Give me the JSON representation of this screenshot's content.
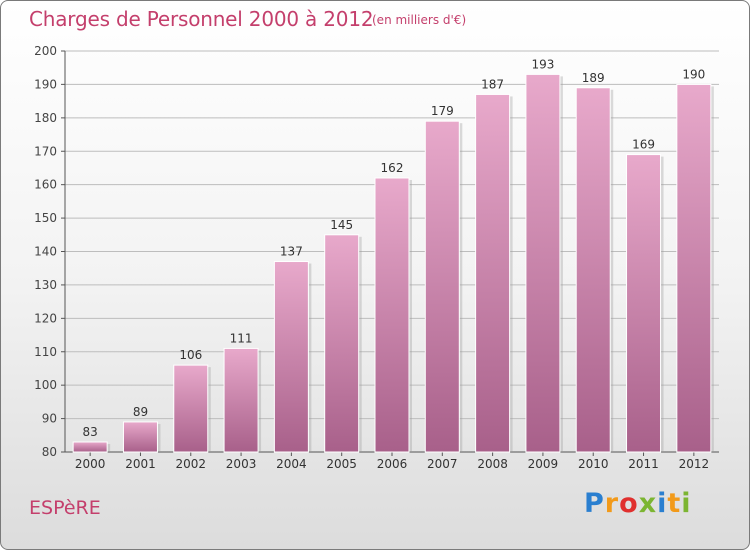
{
  "header": {
    "title": "Charges de Personnel 2000 à 2012",
    "subtitle": "(en milliers d'€)"
  },
  "footer": {
    "town": "ESPèRE",
    "logo_letters": [
      "P",
      "r",
      "o",
      "x",
      "i",
      "t",
      "i"
    ],
    "logo_colors": [
      "#2a7fd0",
      "#f29a1a",
      "#e0302e",
      "#7cb532",
      "#2a7fd0",
      "#f29a1a",
      "#7cb532"
    ]
  },
  "colors": {
    "bar_top": "#e8a9cb",
    "bar_bottom": "#a8608a",
    "title": "#c43f6c"
  },
  "chart_data": {
    "type": "bar",
    "categories": [
      "2000",
      "2001",
      "2002",
      "2003",
      "2004",
      "2005",
      "2006",
      "2007",
      "2008",
      "2009",
      "2010",
      "2011",
      "2012"
    ],
    "values": [
      83,
      89,
      106,
      111,
      137,
      145,
      162,
      179,
      187,
      193,
      189,
      169,
      190
    ],
    "ylim": [
      80,
      200
    ],
    "yticks": [
      80,
      90,
      100,
      110,
      120,
      130,
      140,
      150,
      160,
      170,
      180,
      190,
      200
    ],
    "grid": true
  }
}
